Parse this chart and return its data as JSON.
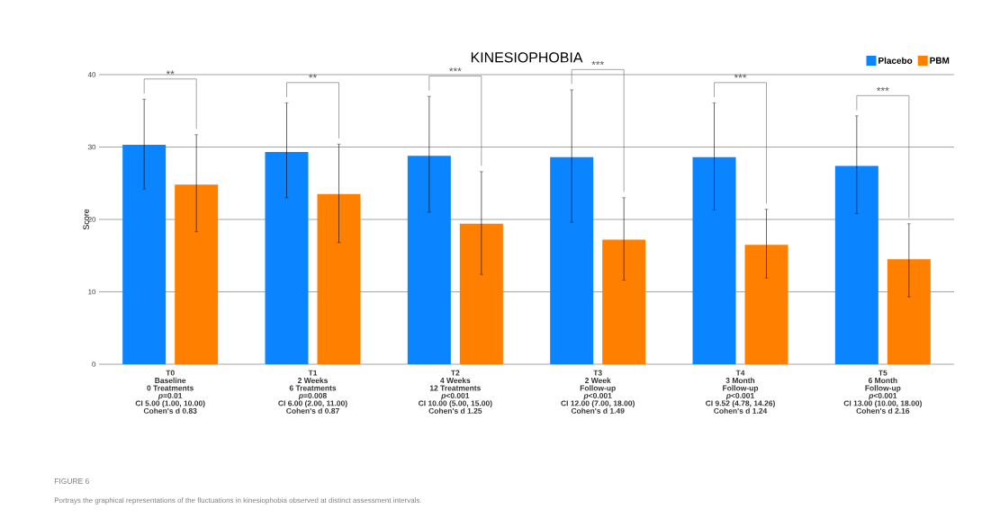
{
  "chart_data": {
    "type": "bar",
    "title": "KINESIOPHOBIA",
    "ylabel": "Score",
    "categories": [
      "T0",
      "T1",
      "T2",
      "T3",
      "T4",
      "T5"
    ],
    "series": [
      {
        "name": "Placebo",
        "color": "#0a84ff",
        "values": [
          30.3,
          29.3,
          28.8,
          28.6,
          28.6,
          27.4
        ],
        "errors": [
          [
            24.2,
            36.6
          ],
          [
            23.0,
            36.1
          ],
          [
            21.0,
            37.0
          ],
          [
            19.6,
            37.9
          ],
          [
            21.3,
            36.1
          ],
          [
            20.8,
            34.3
          ]
        ]
      },
      {
        "name": "PBM",
        "color": "#ff7f00",
        "values": [
          24.8,
          23.5,
          19.4,
          17.2,
          16.5,
          14.5
        ],
        "errors": [
          [
            18.3,
            31.7
          ],
          [
            16.8,
            30.4
          ],
          [
            12.4,
            26.6
          ],
          [
            11.6,
            23.0
          ],
          [
            11.9,
            21.4
          ],
          [
            9.3,
            19.4
          ]
        ]
      }
    ],
    "ylim": [
      0,
      40
    ],
    "yticks": [
      0,
      10,
      20,
      30,
      40
    ],
    "grid": "y",
    "legend": "top right",
    "annotations": [
      "**",
      "**",
      "***",
      "***",
      "***",
      "***",
      "Baseline",
      "0 Treatments",
      "*p*=0.01",
      "CI 5.00 (1.00, 10.00)",
      "Cohen's d 0.83",
      "2 Weeks",
      "6 Treatments",
      "*p*=0.008",
      "CI 6.00 (2.00, 11.00)",
      "Cohen's d 0.87",
      "4 Weeks",
      "12 Treatments",
      "*p*<0.001",
      "CI 10.00 (5.00, 15.00)",
      "Cohen's d 1.25",
      "2 Week",
      "Follow-up",
      "*p*<0.001",
      "CI 12.00 (7.00, 18.00)",
      "Cohen's d 1.49",
      "3 Month",
      "Follow-up",
      "*p*<0.001",
      "CI 9.52 (4.78, 14.26)",
      "Cohen's d 1.24",
      "6 Month",
      "Follow-up",
      "*p*<0.001",
      "CI 13.00 (10.00, 18.00)",
      "Cohen's d 2.16",
      "FIGURE 6",
      "Portrays the graphical representations of the fluctuations in kinesiophobia observed at distinct assessment intervals."
    ]
  }
}
